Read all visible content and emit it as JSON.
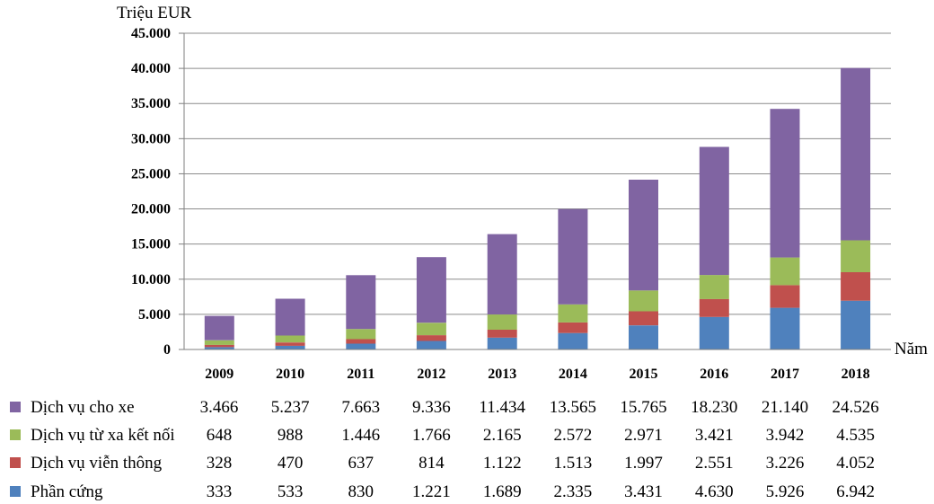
{
  "chart_data": {
    "type": "bar",
    "stacked": true,
    "title": "",
    "ylabel": "Triệu EUR",
    "xlabel": "Năm",
    "ylim": [
      0,
      45000
    ],
    "yticks": [
      "0",
      "5.000",
      "10.000",
      "15.000",
      "20.000",
      "25.000",
      "30.000",
      "35.000",
      "40.000",
      "45.000"
    ],
    "ytick_values": [
      0,
      5000,
      10000,
      15000,
      20000,
      25000,
      30000,
      35000,
      40000,
      45000
    ],
    "grid": true,
    "legend": "data-table-left",
    "categories": [
      "2009",
      "2010",
      "2011",
      "2012",
      "2013",
      "2014",
      "2015",
      "2016",
      "2017",
      "2018"
    ],
    "series": [
      {
        "name": "Phần cứng",
        "color": "#4f81bd",
        "values": [
          333,
          533,
          830,
          1221,
          1689,
          2335,
          3431,
          4630,
          5926,
          6942
        ],
        "labels": [
          "333",
          "533",
          "830",
          "1.221",
          "1.689",
          "2.335",
          "3.431",
          "4.630",
          "5.926",
          "6.942"
        ]
      },
      {
        "name": "Dịch vụ viễn thông",
        "color": "#c0504d",
        "values": [
          328,
          470,
          637,
          814,
          1122,
          1513,
          1997,
          2551,
          3226,
          4052
        ],
        "labels": [
          "328",
          "470",
          "637",
          "814",
          "1.122",
          "1.513",
          "1.997",
          "2.551",
          "3.226",
          "4.052"
        ]
      },
      {
        "name": "Dịch vụ từ xa kết nối",
        "color": "#9bbb59",
        "values": [
          648,
          988,
          1446,
          1766,
          2165,
          2572,
          2971,
          3421,
          3942,
          4535
        ],
        "labels": [
          "648",
          "988",
          "1.446",
          "1.766",
          "2.165",
          "2.572",
          "2.971",
          "3.421",
          "3.942",
          "4.535"
        ]
      },
      {
        "name": "Dịch vụ cho xe",
        "color": "#8064a2",
        "values": [
          3466,
          5237,
          7663,
          9336,
          11434,
          13565,
          15765,
          18230,
          21140,
          24526
        ],
        "labels": [
          "3.466",
          "5.237",
          "7.663",
          "9.336",
          "11.434",
          "13.565",
          "15.765",
          "18.230",
          "21.140",
          "24.526"
        ]
      }
    ]
  }
}
